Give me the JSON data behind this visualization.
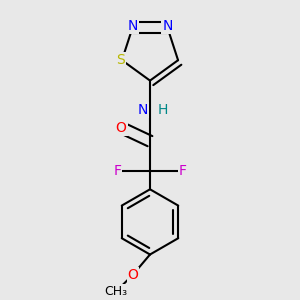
{
  "bg_color": "#e8e8e8",
  "bond_color": "#000000",
  "bond_width": 1.5,
  "colors": {
    "S": "#b8b800",
    "N": "#0000ff",
    "O": "#ff0000",
    "F": "#cc00cc",
    "H": "#008888",
    "C": "#000000"
  },
  "fs": 10,
  "xlim": [
    0.15,
    0.85
  ],
  "ylim": [
    0.03,
    0.97
  ]
}
